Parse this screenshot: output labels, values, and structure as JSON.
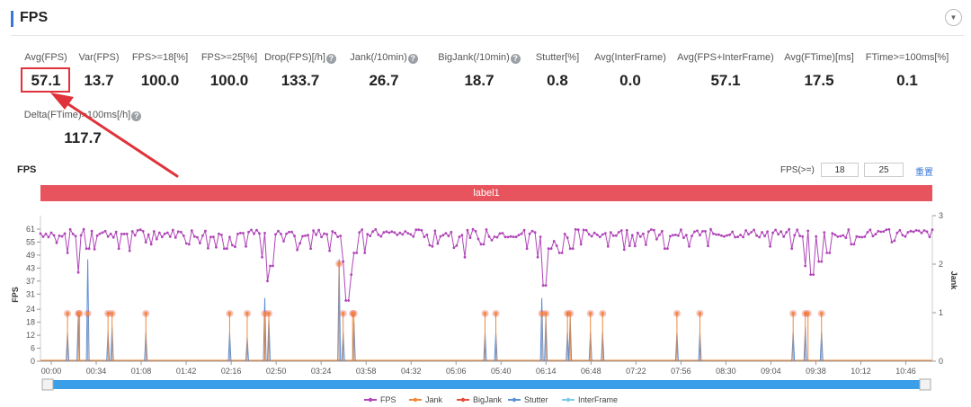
{
  "section": {
    "title": "FPS"
  },
  "metrics": [
    {
      "label": "Avg(FPS)",
      "value": "57.1",
      "help": false
    },
    {
      "label": "Var(FPS)",
      "value": "13.7",
      "help": false
    },
    {
      "label": "FPS>=18[%]",
      "value": "100.0",
      "help": false
    },
    {
      "label": "FPS>=25[%]",
      "value": "100.0",
      "help": false
    },
    {
      "label": "Drop(FPS)[/h]",
      "value": "133.7",
      "help": true
    },
    {
      "label": "Jank(/10min)",
      "value": "26.7",
      "help": true
    },
    {
      "label": "BigJank(/10min)",
      "value": "18.7",
      "help": true
    },
    {
      "label": "Stutter[%]",
      "value": "0.8",
      "help": false
    },
    {
      "label": "Avg(InterFrame)",
      "value": "0.0",
      "help": false
    },
    {
      "label": "Avg(FPS+InterFrame)",
      "value": "57.1",
      "help": false
    },
    {
      "label": "Avg(FTime)[ms]",
      "value": "17.5",
      "help": false
    },
    {
      "label": "FTime>=100ms[%]",
      "value": "0.1",
      "help": false
    },
    {
      "label": "Delta(FTime)>100ms[/h]",
      "value": "117.7",
      "help": true
    }
  ],
  "controls": {
    "threshold_label": "FPS(>=)",
    "threshold_low": "18",
    "threshold_high": "25",
    "reset_label": "重置"
  },
  "chart_data": {
    "type": "line",
    "title": "FPS",
    "band_label": "label1",
    "ylabel": "FPS",
    "y2label": "Jank",
    "ylim": [
      0,
      61
    ],
    "yticks": [
      0,
      6,
      12,
      18,
      24,
      31,
      37,
      43,
      49,
      55,
      61
    ],
    "y2lim": [
      0,
      3
    ],
    "y2ticks": [
      0,
      1,
      2,
      3
    ],
    "xlim": [
      0,
      660
    ],
    "xticks": [
      "00:00",
      "00:34",
      "01:08",
      "01:42",
      "02:16",
      "02:50",
      "03:24",
      "03:58",
      "04:32",
      "05:06",
      "05:40",
      "06:14",
      "06:48",
      "07:22",
      "07:56",
      "08:30",
      "09:04",
      "09:38",
      "10:12",
      "10:46"
    ],
    "legend": [
      "FPS",
      "Jank",
      "BigJank",
      "Stutter",
      "InterFrame"
    ],
    "colors": {
      "FPS": "#b045b8",
      "Jank": "#f0883a",
      "BigJank": "#e84c3d",
      "Stutter": "#5b8fd6",
      "InterFrame": "#7ec8ea",
      "band": "#e8545e",
      "slider": "#3a9ee8"
    },
    "fps_baseline": 59,
    "fps_dips": [
      {
        "t": 20,
        "v": 50
      },
      {
        "t": 28,
        "v": 41
      },
      {
        "t": 35,
        "v": 52
      },
      {
        "t": 58,
        "v": 52
      },
      {
        "t": 66,
        "v": 51
      },
      {
        "t": 82,
        "v": 54
      },
      {
        "t": 110,
        "v": 54
      },
      {
        "t": 137,
        "v": 52
      },
      {
        "t": 152,
        "v": 53
      },
      {
        "t": 164,
        "v": 48
      },
      {
        "t": 168,
        "v": 37
      },
      {
        "t": 171,
        "v": 44
      },
      {
        "t": 200,
        "v": 52
      },
      {
        "t": 214,
        "v": 51
      },
      {
        "t": 224,
        "v": 46
      },
      {
        "t": 227,
        "v": 28
      },
      {
        "t": 230,
        "v": 40
      },
      {
        "t": 233,
        "v": 50
      },
      {
        "t": 240,
        "v": 50
      },
      {
        "t": 290,
        "v": 53
      },
      {
        "t": 314,
        "v": 48
      },
      {
        "t": 327,
        "v": 54
      },
      {
        "t": 360,
        "v": 52
      },
      {
        "t": 368,
        "v": 48
      },
      {
        "t": 373,
        "v": 35
      },
      {
        "t": 377,
        "v": 52
      },
      {
        "t": 385,
        "v": 50
      },
      {
        "t": 393,
        "v": 52
      },
      {
        "t": 400,
        "v": 54
      },
      {
        "t": 420,
        "v": 53
      },
      {
        "t": 463,
        "v": 52
      },
      {
        "t": 480,
        "v": 53
      },
      {
        "t": 540,
        "v": 53
      },
      {
        "t": 556,
        "v": 52
      },
      {
        "t": 566,
        "v": 44
      },
      {
        "t": 571,
        "v": 40
      },
      {
        "t": 577,
        "v": 46
      },
      {
        "t": 583,
        "v": 50
      },
      {
        "t": 601,
        "v": 54
      },
      {
        "t": 630,
        "v": 55
      }
    ],
    "jank_events": [
      {
        "t": 20,
        "v": 1
      },
      {
        "t": 28,
        "v": 1
      },
      {
        "t": 29,
        "v": 1
      },
      {
        "t": 35,
        "v": 1
      },
      {
        "t": 50,
        "v": 1
      },
      {
        "t": 53,
        "v": 1
      },
      {
        "t": 78,
        "v": 1
      },
      {
        "t": 140,
        "v": 1
      },
      {
        "t": 153,
        "v": 1
      },
      {
        "t": 166,
        "v": 1
      },
      {
        "t": 169,
        "v": 1
      },
      {
        "t": 221,
        "v": 2
      },
      {
        "t": 224,
        "v": 1
      },
      {
        "t": 231,
        "v": 1
      },
      {
        "t": 232,
        "v": 1
      },
      {
        "t": 329,
        "v": 1
      },
      {
        "t": 337,
        "v": 1
      },
      {
        "t": 371,
        "v": 1
      },
      {
        "t": 374,
        "v": 1
      },
      {
        "t": 390,
        "v": 1
      },
      {
        "t": 392,
        "v": 1
      },
      {
        "t": 407,
        "v": 1
      },
      {
        "t": 416,
        "v": 1
      },
      {
        "t": 471,
        "v": 1
      },
      {
        "t": 488,
        "v": 1
      },
      {
        "t": 557,
        "v": 1
      },
      {
        "t": 566,
        "v": 1
      },
      {
        "t": 568,
        "v": 1
      },
      {
        "t": 578,
        "v": 1
      }
    ],
    "stutter_events": [
      {
        "t": 20,
        "v": 0.6
      },
      {
        "t": 28,
        "v": 1.0
      },
      {
        "t": 35,
        "v": 2.1
      },
      {
        "t": 50,
        "v": 0.6
      },
      {
        "t": 53,
        "v": 0.7
      },
      {
        "t": 78,
        "v": 0.6
      },
      {
        "t": 140,
        "v": 0.6
      },
      {
        "t": 153,
        "v": 0.5
      },
      {
        "t": 166,
        "v": 1.3
      },
      {
        "t": 169,
        "v": 0.9
      },
      {
        "t": 221,
        "v": 2.1
      },
      {
        "t": 224,
        "v": 0.6
      },
      {
        "t": 232,
        "v": 0.8
      },
      {
        "t": 329,
        "v": 0.6
      },
      {
        "t": 337,
        "v": 0.6
      },
      {
        "t": 371,
        "v": 1.3
      },
      {
        "t": 374,
        "v": 0.9
      },
      {
        "t": 390,
        "v": 0.6
      },
      {
        "t": 392,
        "v": 0.9
      },
      {
        "t": 407,
        "v": 0.6
      },
      {
        "t": 416,
        "v": 0.6
      },
      {
        "t": 471,
        "v": 0.6
      },
      {
        "t": 488,
        "v": 0.6
      },
      {
        "t": 557,
        "v": 0.6
      },
      {
        "t": 566,
        "v": 0.7
      },
      {
        "t": 578,
        "v": 0.6
      }
    ]
  }
}
